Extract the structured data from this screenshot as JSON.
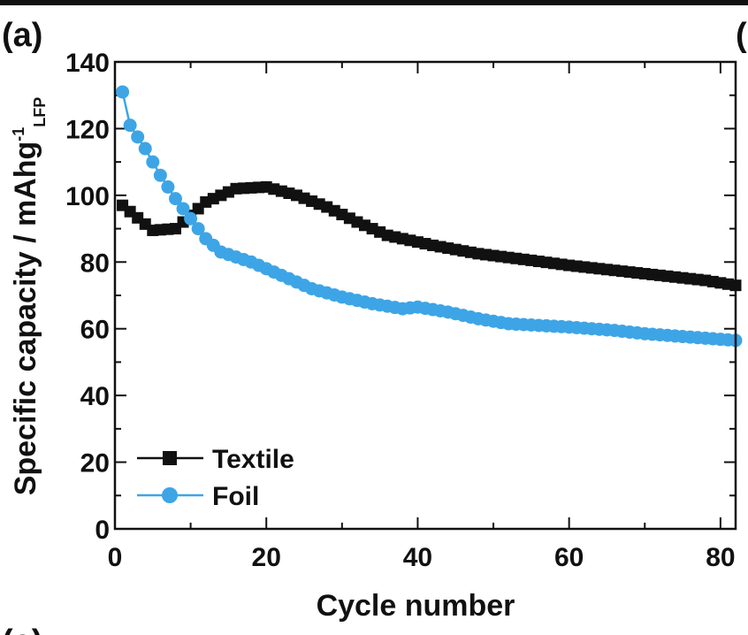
{
  "panel": {
    "label": "(a)",
    "next_panel_label": "(",
    "bottom_panel_label": "(c)"
  },
  "chart_data": {
    "type": "line",
    "title": "",
    "xlabel": "Cycle number",
    "ylabel": "Specific capacity / mAhg",
    "ylabel_superscript": "-1",
    "ylabel_subscript": "LFP",
    "xlim": [
      0,
      82
    ],
    "ylim": [
      0,
      140
    ],
    "xticks": [
      0,
      20,
      40,
      60,
      80
    ],
    "yticks": [
      0,
      20,
      40,
      60,
      80,
      100,
      120,
      140
    ],
    "x_minor_step": 10,
    "y_minor_step": 10,
    "grid": false,
    "legend_position": "bottom-left",
    "series": [
      {
        "name": "Textile",
        "color": "#111111",
        "marker": "square",
        "points": [
          [
            1,
            97
          ],
          [
            5,
            89.5
          ],
          [
            8,
            90
          ],
          [
            12,
            98
          ],
          [
            16,
            102
          ],
          [
            20,
            102.5
          ],
          [
            24,
            100
          ],
          [
            28,
            96.5
          ],
          [
            32,
            92
          ],
          [
            36,
            88
          ],
          [
            38,
            87
          ],
          [
            42,
            85
          ],
          [
            48,
            82.5
          ],
          [
            55,
            80.5
          ],
          [
            60,
            79
          ],
          [
            66,
            77.5
          ],
          [
            72,
            76
          ],
          [
            78,
            74.5
          ],
          [
            82,
            73
          ]
        ]
      },
      {
        "name": "Foil",
        "color": "#3da5e6",
        "marker": "circle",
        "points": [
          [
            1,
            131
          ],
          [
            2,
            121
          ],
          [
            4,
            114
          ],
          [
            6,
            106
          ],
          [
            8,
            99
          ],
          [
            10,
            93
          ],
          [
            12,
            87
          ],
          [
            14,
            83
          ],
          [
            18,
            80
          ],
          [
            22,
            76
          ],
          [
            26,
            72
          ],
          [
            30,
            69.5
          ],
          [
            34,
            67.5
          ],
          [
            38,
            66
          ],
          [
            40,
            66.5
          ],
          [
            44,
            65
          ],
          [
            48,
            63
          ],
          [
            52,
            61.5
          ],
          [
            56,
            61
          ],
          [
            60,
            60.5
          ],
          [
            66,
            59.5
          ],
          [
            70,
            58.5
          ],
          [
            76,
            57.5
          ],
          [
            82,
            56.5
          ]
        ]
      }
    ]
  }
}
